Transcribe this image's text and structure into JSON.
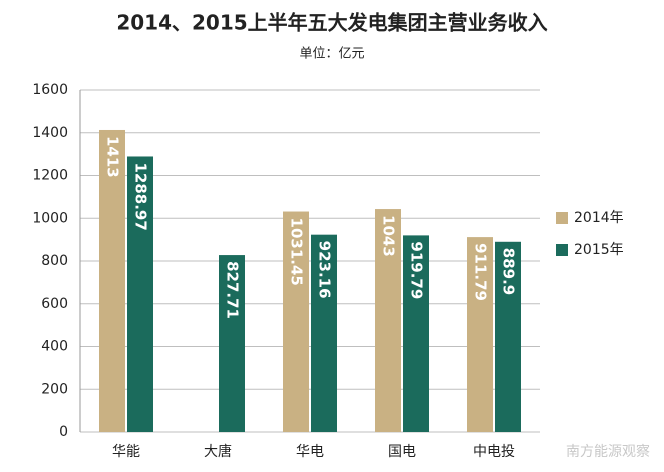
{
  "chart_data": {
    "type": "bar",
    "title": "2014、2015上半年五大发电集团主营业务收入",
    "subtitle": "单位：亿元",
    "categories": [
      "华能",
      "大唐",
      "华电",
      "国电",
      "中电投"
    ],
    "series": [
      {
        "name": "2014年",
        "color": "#c9b183",
        "values": [
          1413,
          null,
          1031.45,
          1043,
          911.79
        ]
      },
      {
        "name": "2015年",
        "color": "#1b6b5c",
        "values": [
          1288.97,
          827.71,
          923.16,
          919.79,
          889.9
        ]
      }
    ],
    "ylim": [
      0,
      1600
    ],
    "yticks": [
      0,
      200,
      400,
      600,
      800,
      1000,
      1200,
      1400,
      1600
    ],
    "grid": true,
    "legend": "right",
    "watermark": "南方能源观察"
  }
}
